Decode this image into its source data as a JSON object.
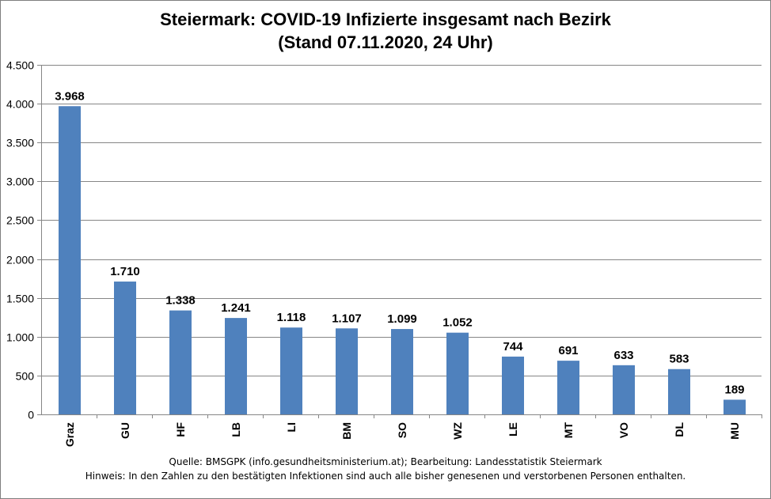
{
  "chart_data": {
    "type": "bar",
    "title": "Steiermark:  COVID-19 Infizierte insgesamt nach Bezirk",
    "subtitle": "(Stand 07.11.2020, 24 Uhr)",
    "categories": [
      "Graz",
      "GU",
      "HF",
      "LB",
      "LI",
      "BM",
      "SO",
      "WZ",
      "LE",
      "MT",
      "VO",
      "DL",
      "MU"
    ],
    "values": [
      3968,
      1710,
      1338,
      1241,
      1118,
      1107,
      1099,
      1052,
      744,
      691,
      633,
      583,
      189
    ],
    "value_labels": [
      "3.968",
      "1.710",
      "1.338",
      "1.241",
      "1.118",
      "1.107",
      "1.099",
      "1.052",
      "744",
      "691",
      "633",
      "583",
      "189"
    ],
    "ylim": [
      0,
      4500
    ],
    "yticks": [
      0,
      500,
      1000,
      1500,
      2000,
      2500,
      3000,
      3500,
      4000,
      4500
    ],
    "ytick_labels": [
      "0",
      "500",
      "1.000",
      "1.500",
      "2.000",
      "2.500",
      "3.000",
      "3.500",
      "4.000",
      "4.500"
    ],
    "grid": true,
    "legend": "none",
    "bar_color": "#4f81bd",
    "source": "Quelle: BMSGPK (info.gesundheitsministerium.at); Bearbeitung: Landesstatistik Steiermark",
    "note": "Hinweis: In den Zahlen zu den bestätigten Infektionen sind auch alle bisher genesenen und verstorbenen Personen enthalten."
  }
}
